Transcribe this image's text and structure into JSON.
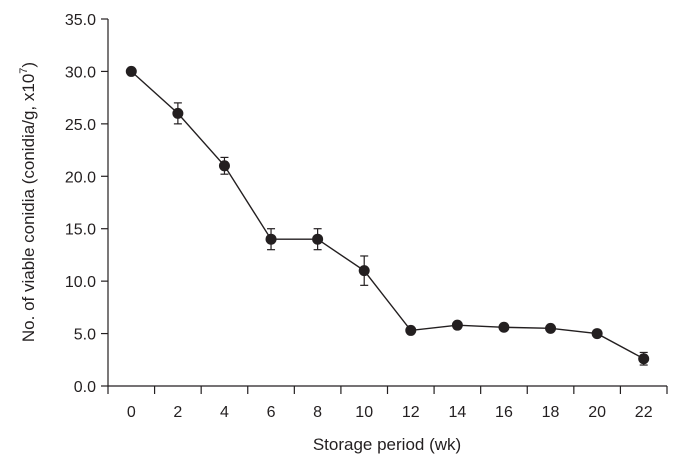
{
  "chart_data": {
    "type": "line",
    "title": "",
    "xlabel": "Storage period (wk)",
    "ylabel": {
      "main": "No. of viable conidia (conidia/g, x10",
      "superscript": "7",
      "close": ")"
    },
    "x": [
      0,
      2,
      4,
      6,
      8,
      10,
      12,
      14,
      16,
      18,
      20,
      22
    ],
    "xticks": [
      "0",
      "2",
      "4",
      "6",
      "8",
      "10",
      "12",
      "14",
      "16",
      "18",
      "20",
      "22"
    ],
    "ylim": [
      0,
      35
    ],
    "yticks": [
      "0.0",
      "5.0",
      "10.0",
      "15.0",
      "20.0",
      "25.0",
      "30.0",
      "35.0"
    ],
    "grid": false,
    "series": [
      {
        "values": [
          30.0,
          26.0,
          21.0,
          14.0,
          14.0,
          11.0,
          5.3,
          5.8,
          5.6,
          5.5,
          5.0,
          2.6
        ],
        "error": [
          0.0,
          1.0,
          0.8,
          1.0,
          1.0,
          1.4,
          0.0,
          0.0,
          0.0,
          0.0,
          0.0,
          0.6
        ]
      }
    ],
    "colors": {
      "line": "#231f20",
      "marker": "#231f20",
      "axis": "#231f20"
    }
  }
}
